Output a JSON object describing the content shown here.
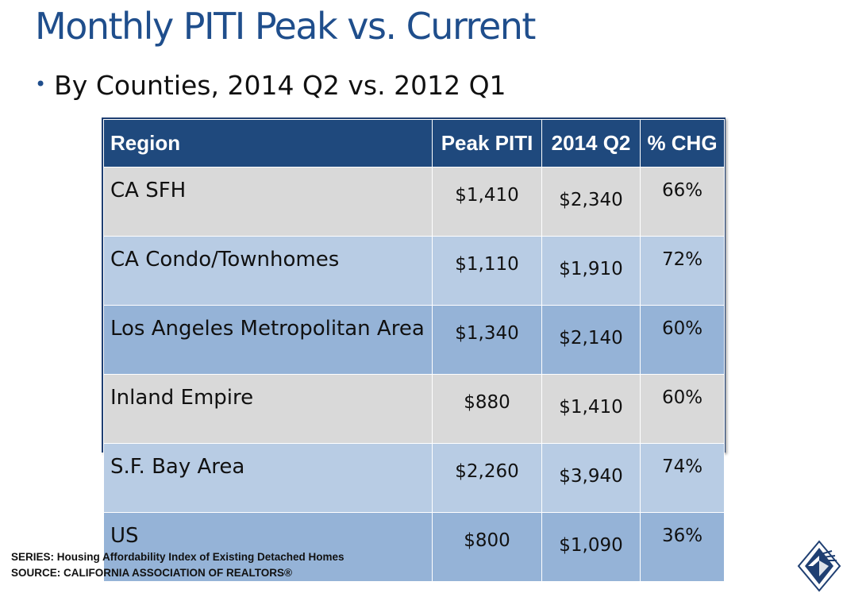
{
  "title": "Monthly PITI Peak vs. Current",
  "bullet": "By Counties, 2014 Q2 vs. 2012 Q1",
  "table": {
    "headers": [
      "Region",
      "Peak PITI",
      "2014 Q2",
      "% CHG"
    ],
    "rows": [
      {
        "region": "CA SFH",
        "peak": "$1,410",
        "current": "$2,340",
        "chg": "66%"
      },
      {
        "region": "CA Condo/Townhomes",
        "peak": "$1,110",
        "current": "$1,910",
        "chg": "72%"
      },
      {
        "region": "Los Angeles Metropolitan Area",
        "peak": "$1,340",
        "current": "$2,140",
        "chg": "60%"
      },
      {
        "region": "Inland Empire",
        "peak": "$880",
        "current": "$1,410",
        "chg": "60%"
      },
      {
        "region": "S.F. Bay Area",
        "peak": "$2,260",
        "current": "$3,940",
        "chg": "74%"
      },
      {
        "region": "US",
        "peak": "$800",
        "current": "$1,090",
        "chg": "36%"
      }
    ]
  },
  "footer": {
    "series": "SERIES: Housing Affordability Index of Existing Detached Homes",
    "source": "SOURCE:  CALIFORNIA ASSOCIATION OF REALTORS®"
  },
  "colors": {
    "title": "#1f4e8c",
    "header_bg": "#1f497d",
    "row_gray": "#d9d9d9",
    "row_light": "#b8cce4",
    "row_mid": "#95b3d7"
  },
  "logo_icon": "car-logo-icon"
}
